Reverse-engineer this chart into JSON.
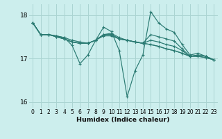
{
  "xlabel": "Humidex (Indice chaleur)",
  "background_color": "#cceeed",
  "grid_color": "#aad4d2",
  "line_color": "#2a7a72",
  "xlim": [
    -0.5,
    23.5
  ],
  "ylim": [
    15.85,
    18.25
  ],
  "yticks": [
    16,
    17,
    18
  ],
  "xticks": [
    0,
    1,
    2,
    3,
    4,
    5,
    6,
    7,
    8,
    9,
    10,
    11,
    12,
    13,
    14,
    15,
    16,
    17,
    18,
    19,
    20,
    21,
    22,
    23
  ],
  "lines": [
    [
      17.82,
      17.55,
      17.55,
      17.52,
      17.48,
      17.3,
      16.88,
      17.08,
      17.42,
      17.72,
      17.62,
      17.18,
      16.12,
      16.72,
      17.08,
      18.08,
      17.82,
      17.68,
      17.6,
      17.32,
      17.08,
      17.12,
      17.05,
      16.97
    ],
    [
      17.82,
      17.55,
      17.55,
      17.52,
      17.48,
      17.42,
      17.38,
      17.35,
      17.42,
      17.52,
      17.52,
      17.45,
      17.42,
      17.38,
      17.35,
      17.32,
      17.28,
      17.22,
      17.18,
      17.12,
      17.05,
      17.05,
      17.02,
      16.97
    ],
    [
      17.82,
      17.55,
      17.55,
      17.5,
      17.45,
      17.38,
      17.35,
      17.35,
      17.42,
      17.55,
      17.58,
      17.48,
      17.42,
      17.38,
      17.35,
      17.42,
      17.38,
      17.32,
      17.28,
      17.18,
      17.05,
      17.08,
      17.05,
      16.97
    ],
    [
      17.82,
      17.55,
      17.55,
      17.5,
      17.45,
      17.38,
      17.35,
      17.35,
      17.42,
      17.55,
      17.55,
      17.45,
      17.42,
      17.38,
      17.35,
      17.32,
      17.28,
      17.22,
      17.18,
      17.12,
      17.05,
      17.05,
      17.02,
      16.97
    ],
    [
      17.82,
      17.55,
      17.55,
      17.5,
      17.45,
      17.38,
      17.35,
      17.35,
      17.42,
      17.55,
      17.55,
      17.45,
      17.42,
      17.38,
      17.35,
      17.55,
      17.5,
      17.45,
      17.4,
      17.22,
      17.05,
      17.08,
      17.05,
      16.97
    ]
  ]
}
